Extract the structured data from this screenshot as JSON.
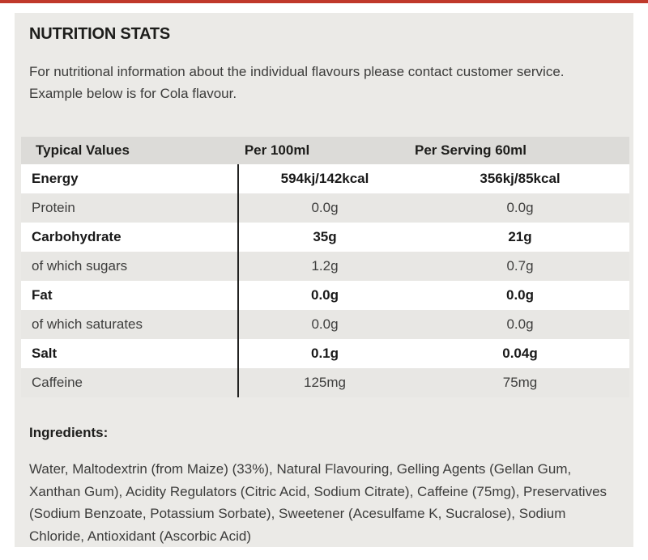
{
  "accent_color": "#c0392b",
  "section": {
    "title": "NUTRITION STATS",
    "intro": "For nutritional information about the individual flavours please contact customer service. Example below is for Cola flavour."
  },
  "table": {
    "columns": [
      "Typical Values",
      "Per 100ml",
      "Per Serving 60ml"
    ],
    "rows": [
      {
        "label": "Energy",
        "per_100ml": "594kj/142kcal",
        "per_serving": "356kj/85kcal"
      },
      {
        "label": "Protein",
        "per_100ml": "0.0g",
        "per_serving": "0.0g"
      },
      {
        "label": "Carbohydrate",
        "per_100ml": "35g",
        "per_serving": "21g"
      },
      {
        "label": "of which sugars",
        "per_100ml": "1.2g",
        "per_serving": "0.7g"
      },
      {
        "label": "Fat",
        "per_100ml": "0.0g",
        "per_serving": "0.0g"
      },
      {
        "label": "of which saturates",
        "per_100ml": "0.0g",
        "per_serving": "0.0g"
      },
      {
        "label": "Salt",
        "per_100ml": "0.1g",
        "per_serving": "0.04g"
      },
      {
        "label": "Caffeine",
        "per_100ml": "125mg",
        "per_serving": "75mg"
      }
    ]
  },
  "ingredients": {
    "title": "Ingredients:",
    "text": "Water, Maltodextrin (from Maize) (33%), Natural Flavouring, Gelling Agents (Gellan Gum, Xanthan Gum), Acidity Regulators (Citric Acid, Sodium Citrate), Caffeine (75mg), Preservatives (Sodium Benzoate, Potassium Sorbate), Sweetener (Acesulfame K, Sucralose), Sodium Chloride, Antioxidant (Ascorbic Acid)"
  }
}
